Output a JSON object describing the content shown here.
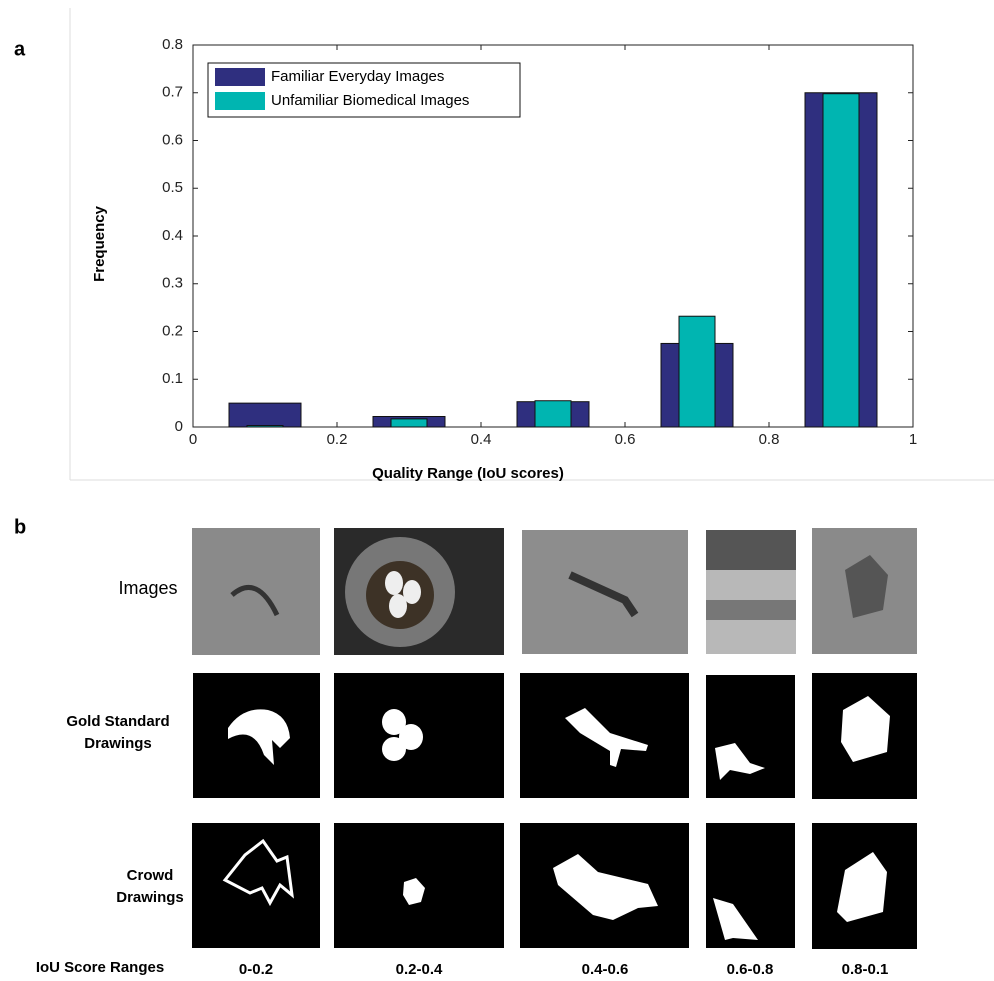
{
  "chart_data": {
    "type": "bar",
    "panel_label": "a",
    "xlabel": "Quality Range (IoU scores)",
    "ylabel": "Frequency",
    "x": [
      0.1,
      0.3,
      0.5,
      0.7,
      0.9
    ],
    "series": [
      {
        "name": "Familiar Everyday Images",
        "color": "#2f2f7f",
        "values": [
          0.05,
          0.022,
          0.053,
          0.175,
          0.7
        ]
      },
      {
        "name": "Unfamiliar Biomedical Images",
        "color": "#00b5b1",
        "values": [
          0.003,
          0.017,
          0.055,
          0.232,
          0.698
        ]
      }
    ],
    "xlim": [
      0,
      1
    ],
    "xticks": [
      0,
      0.2,
      0.4,
      0.6,
      0.8,
      1
    ],
    "ylim": [
      0,
      0.8
    ],
    "yticks": [
      0,
      0.1,
      0.2,
      0.3,
      0.4,
      0.5,
      0.6,
      0.7,
      0.8
    ],
    "legend": "upper-left"
  },
  "panel_b": {
    "panel_label": "b",
    "row_labels": [
      [
        "Images"
      ],
      [
        "Gold Standard",
        "Drawings"
      ],
      [
        "Crowd",
        "Drawings"
      ]
    ],
    "range_header": "IoU Score Ranges",
    "columns": [
      "0-0.2",
      "0.2-0.4",
      "0.4-0.6",
      "0.6-0.8",
      "0.8-0.1"
    ]
  }
}
